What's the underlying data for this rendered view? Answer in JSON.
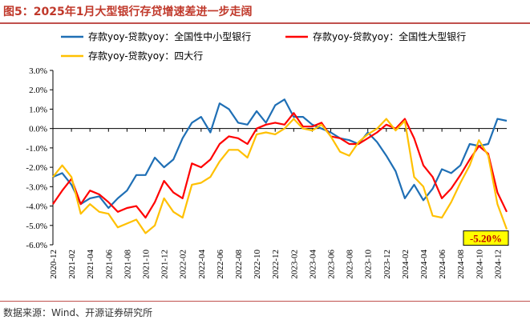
{
  "title": "图5：2025年1月大型银行存贷增速差进一步走阔",
  "source": "数据来源：Wind、开源证券研究所",
  "chart_data": {
    "type": "line",
    "y_range": [
      -6.0,
      3.0
    ],
    "y_ticks": [
      "3.0%",
      "2.0%",
      "1.0%",
      "0.0%",
      "-1.0%",
      "-2.0%",
      "-3.0%",
      "-4.0%",
      "-5.0%",
      "-6.0%"
    ],
    "y_tick_values": [
      3,
      2,
      1,
      0,
      -1,
      -2,
      -3,
      -4,
      -5,
      -6
    ],
    "x_ticks": [
      "2020-12",
      "2021-02",
      "2021-04",
      "2021-06",
      "2021-08",
      "2021-10",
      "2021-12",
      "2022-02",
      "2022-04",
      "2022-06",
      "2022-08",
      "2022-10",
      "2022-12",
      "2023-02",
      "2023-04",
      "2023-06",
      "2023-08",
      "2023-10",
      "2023-12",
      "2024-02",
      "2024-04",
      "2024-06",
      "2024-08",
      "2024-10",
      "2024-12"
    ],
    "x": [
      "2020-12",
      "2021-01",
      "2021-02",
      "2021-03",
      "2021-04",
      "2021-05",
      "2021-06",
      "2021-07",
      "2021-08",
      "2021-09",
      "2021-10",
      "2021-11",
      "2021-12",
      "2022-01",
      "2022-02",
      "2022-03",
      "2022-04",
      "2022-05",
      "2022-06",
      "2022-07",
      "2022-08",
      "2022-09",
      "2022-10",
      "2022-11",
      "2022-12",
      "2023-01",
      "2023-02",
      "2023-03",
      "2023-04",
      "2023-05",
      "2023-06",
      "2023-07",
      "2023-08",
      "2023-09",
      "2023-10",
      "2023-11",
      "2023-12",
      "2024-01",
      "2024-02",
      "2024-03",
      "2024-04",
      "2024-05",
      "2024-06",
      "2024-07",
      "2024-08",
      "2024-09",
      "2024-10",
      "2024-11",
      "2024-12",
      "2025-01"
    ],
    "series": [
      {
        "name": "存款yoy-贷款yoy：全国性中小型银行",
        "color": "#1f6fb5",
        "values": [
          -2.5,
          -2.3,
          -2.9,
          -3.9,
          -3.6,
          -3.5,
          -4.1,
          -3.6,
          -3.2,
          -2.4,
          -2.4,
          -1.5,
          -2.0,
          -1.6,
          -0.5,
          0.3,
          0.6,
          -0.2,
          1.3,
          1.0,
          0.3,
          0.2,
          0.9,
          0.3,
          1.2,
          1.5,
          0.6,
          0.6,
          0.2,
          0.0,
          -0.2,
          -0.5,
          -0.6,
          -0.8,
          -0.2,
          -0.7,
          -1.4,
          -2.2,
          -3.6,
          -2.9,
          -3.7,
          -3.1,
          -2.1,
          -2.3,
          -1.9,
          -0.8,
          -0.9,
          -0.8,
          0.5,
          0.4
        ]
      },
      {
        "name": "存款yoy-贷款yoy：全国性大型银行",
        "color": "#ff0000",
        "values": [
          -3.9,
          -3.2,
          -2.6,
          -3.9,
          -3.2,
          -3.4,
          -3.8,
          -4.3,
          -4.1,
          -4.0,
          -4.6,
          -3.8,
          -2.7,
          -3.3,
          -3.6,
          -1.8,
          -2.0,
          -1.6,
          -0.8,
          -0.4,
          -0.5,
          -0.8,
          0.0,
          0.2,
          0.3,
          0.2,
          0.8,
          0.1,
          0.1,
          0.3,
          -0.4,
          -0.5,
          -0.8,
          -0.8,
          -0.5,
          -0.2,
          0.2,
          0.0,
          0.5,
          -0.5,
          -1.9,
          -2.5,
          -3.6,
          -3.1,
          -2.4,
          -1.6,
          -0.9,
          -1.3,
          -3.3,
          -4.3
        ]
      },
      {
        "name": "存款yoy-贷款yoy：四大行",
        "color": "#ffc000",
        "values": [
          -2.5,
          -1.9,
          -2.5,
          -4.4,
          -3.9,
          -4.3,
          -4.4,
          -5.1,
          -4.9,
          -4.7,
          -5.4,
          -5.0,
          -3.6,
          -4.3,
          -4.6,
          -2.9,
          -2.8,
          -2.5,
          -1.7,
          -1.1,
          -1.1,
          -1.5,
          -0.3,
          -0.2,
          -0.3,
          0.0,
          0.5,
          0.0,
          -0.1,
          0.2,
          -0.4,
          -1.2,
          -1.4,
          -0.7,
          -0.3,
          0.0,
          0.5,
          -0.1,
          0.4,
          -2.5,
          -3.0,
          -4.5,
          -4.6,
          -3.8,
          -2.8,
          -1.9,
          -0.6,
          -1.4,
          -3.9,
          -5.2
        ]
      }
    ],
    "annotation": "-5.20%",
    "grid": false,
    "legend_position": "top"
  }
}
